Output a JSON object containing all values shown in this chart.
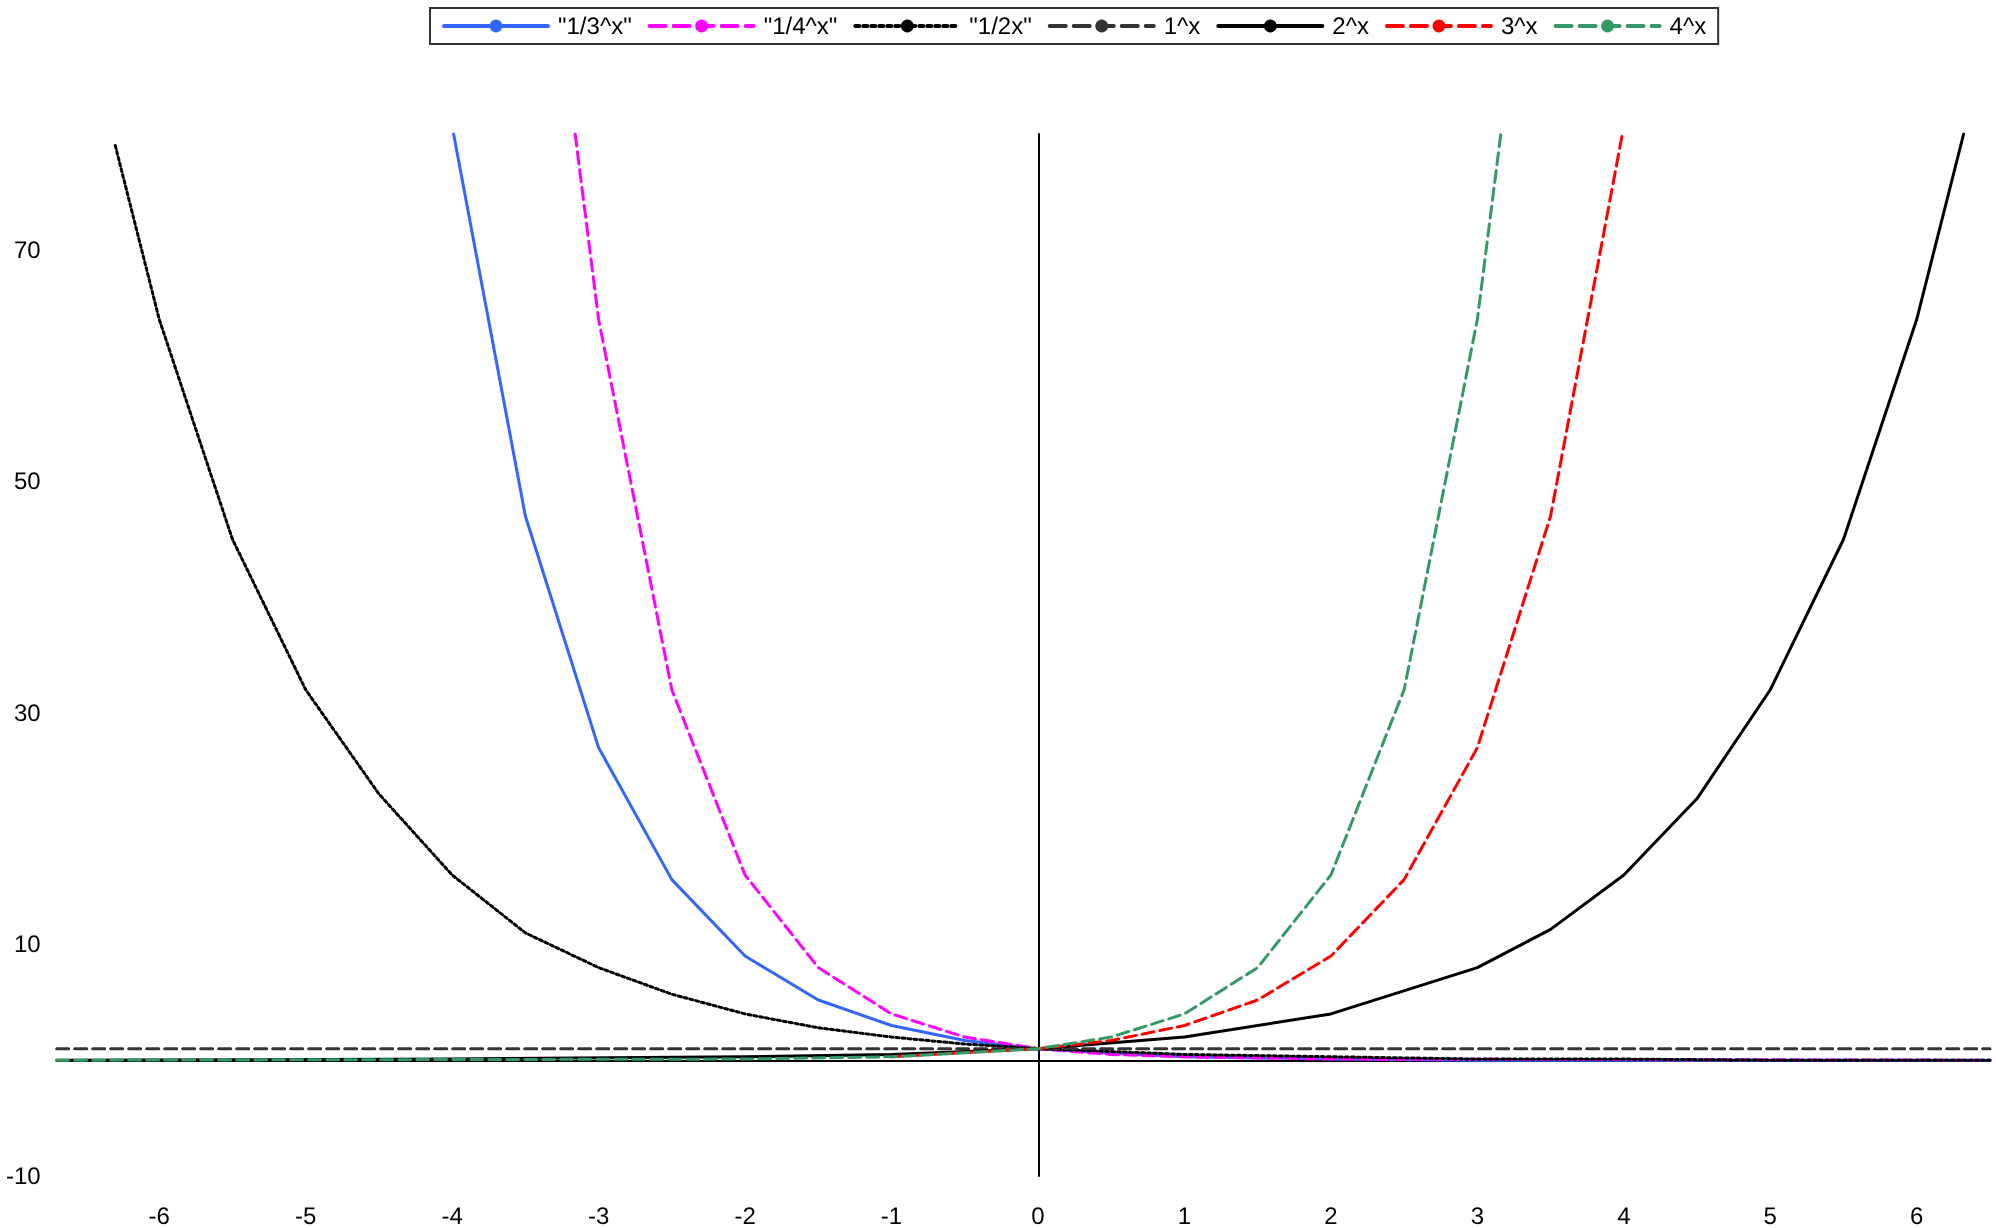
{
  "chart_data": {
    "type": "line",
    "xlim": [
      -6.7,
      6.5
    ],
    "ylim": [
      -10,
      80
    ],
    "xticks": [
      -6,
      -5,
      -4,
      -3,
      -2,
      -1,
      0,
      1,
      2,
      3,
      4,
      5,
      6
    ],
    "yticks": [
      -10,
      10,
      30,
      50,
      70
    ],
    "grid": false,
    "legend": "top",
    "marker": "none",
    "series": [
      {
        "name": "\"1/3^x\"",
        "color": "#3366ff",
        "line_style": "solid",
        "x": [
          -3.99,
          -3.5,
          -3,
          -2.5,
          -2,
          -1.5,
          -1,
          -0.5,
          0,
          0.5,
          1,
          2,
          3,
          6.5
        ],
        "values": [
          80,
          47,
          27,
          15.6,
          9,
          5.2,
          3,
          1.7,
          1,
          0.6,
          0.3,
          0.1,
          0,
          0
        ]
      },
      {
        "name": "\"1/4^x\"",
        "color": "#ff00ff",
        "line_style": "dashed",
        "x": [
          -3.16,
          -3,
          -2.5,
          -2,
          -1.5,
          -1,
          -0.5,
          0,
          0.5,
          1,
          2,
          6.5
        ],
        "values": [
          80,
          64,
          32,
          16,
          8,
          4,
          2,
          1,
          0.5,
          0.3,
          0.1,
          0
        ]
      },
      {
        "name": "\"1/2x\"",
        "color": "#000000",
        "line_style": "dotted",
        "x": [
          -6.3,
          -6,
          -5.5,
          -5,
          -4.5,
          -4,
          -3.5,
          -3,
          -2.5,
          -2,
          -1.5,
          -1,
          -0.5,
          0,
          1,
          2,
          3,
          4,
          5,
          6.5
        ],
        "values": [
          79,
          64,
          45,
          32,
          23,
          16,
          11,
          8,
          5.7,
          4,
          2.8,
          2,
          1.4,
          1,
          0.5,
          0.3,
          0.1,
          0.1,
          0,
          0
        ]
      },
      {
        "name": "1^x",
        "color": "#333333",
        "line_style": "dashed",
        "x": [
          -6.7,
          6.5
        ],
        "values": [
          1,
          1
        ]
      },
      {
        "name": "2^x",
        "color": "#000000",
        "line_style": "solid",
        "x": [
          -6.7,
          -4,
          -2,
          -1,
          0,
          1,
          2,
          3,
          3.5,
          4,
          4.5,
          5,
          5.5,
          6,
          6.32
        ],
        "values": [
          0,
          0.1,
          0.3,
          0.5,
          1,
          2,
          4,
          8,
          11.3,
          16,
          22.6,
          32,
          45,
          64,
          80
        ]
      },
      {
        "name": "3^x",
        "color": "#ff0000",
        "line_style": "dashed",
        "x": [
          -1,
          0,
          0.5,
          1,
          1.5,
          2,
          2.5,
          3,
          3.5,
          3.99
        ],
        "values": [
          0.3,
          1,
          1.7,
          3,
          5.2,
          9,
          15.6,
          27,
          47,
          80
        ]
      },
      {
        "name": "4^x",
        "color": "#339966",
        "line_style": "dashed",
        "x": [
          -6.7,
          -2,
          -1,
          0,
          0.5,
          1,
          1.5,
          2,
          2.5,
          3,
          3.16
        ],
        "values": [
          0,
          0.1,
          0.3,
          1,
          2,
          4,
          8,
          16,
          32,
          64,
          80
        ]
      }
    ]
  }
}
